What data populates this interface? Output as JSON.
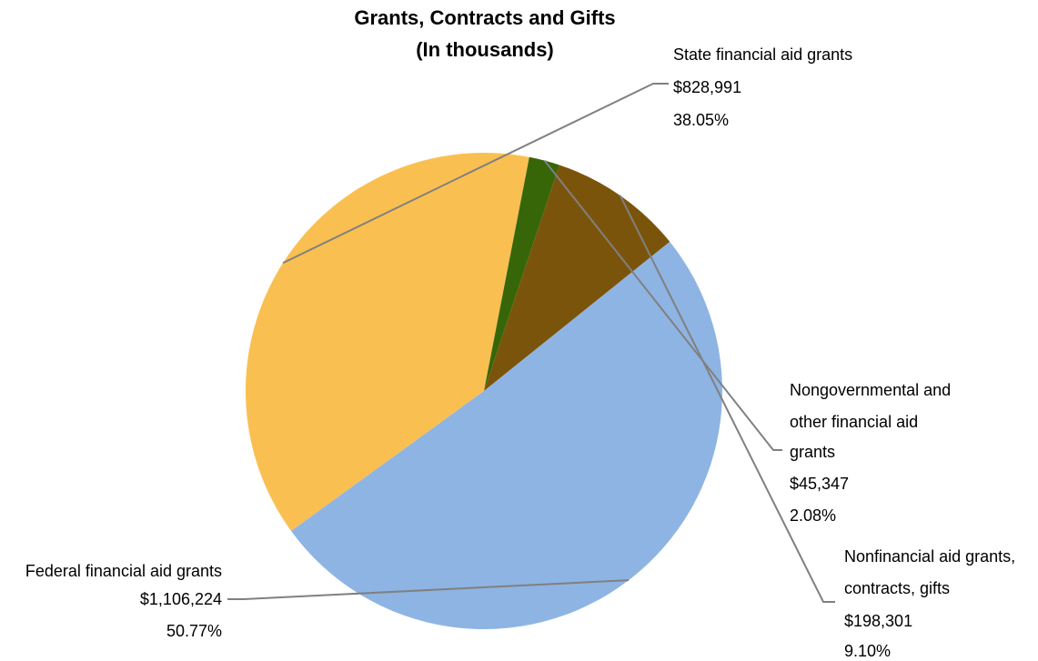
{
  "chart_data": {
    "type": "pie",
    "title": "Grants, Contracts and Gifts",
    "subtitle": "(In thousands)",
    "slices": [
      {
        "label_lines": [
          "State financial aid grants"
        ],
        "value_label": "$828,991",
        "percent_label": "38.05%",
        "value": 828991,
        "percent": 38.05,
        "color": "#F9C051"
      },
      {
        "label_lines": [
          "Nongovernmental and",
          "other financial aid",
          "grants"
        ],
        "value_label": "$45,347",
        "percent_label": "2.08%",
        "value": 45347,
        "percent": 2.08,
        "color": "#376608"
      },
      {
        "label_lines": [
          "Nonfinancial aid grants,",
          "contracts, gifts"
        ],
        "value_label": "$198,301",
        "percent_label": "9.10%",
        "value": 198301,
        "percent": 9.1,
        "color": "#7B540B"
      },
      {
        "label_lines": [
          "Federal financial aid grants"
        ],
        "value_label": "$1,106,224",
        "percent_label": "50.77%",
        "value": 1106224,
        "percent": 50.77,
        "color": "#8EB4E3"
      }
    ],
    "legend": "none",
    "grid": false
  }
}
